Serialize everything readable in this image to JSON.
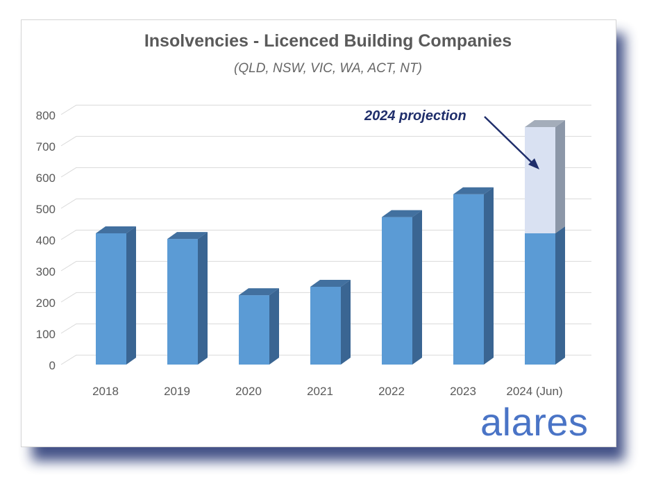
{
  "chart_data": {
    "type": "bar",
    "title": "Insolvencies - Licenced Building Companies",
    "subtitle": "(QLD, NSW, VIC, WA, ACT, NT)",
    "categories": [
      "2018",
      "2019",
      "2020",
      "2021",
      "2022",
      "2023",
      "2024 (Jun)"
    ],
    "series": [
      {
        "values": [
          420,
          402,
          222,
          249,
          472,
          545,
          420
        ]
      },
      {
        "values": [
          0,
          0,
          0,
          0,
          0,
          0,
          340
        ]
      }
    ],
    "stacked": true,
    "yticks": [
      0,
      100,
      200,
      300,
      400,
      500,
      600,
      700,
      800
    ],
    "ylim": [
      0,
      800
    ],
    "grid": true,
    "xlabel": "",
    "ylabel": "",
    "annotation": "2024 projection",
    "colors": {
      "bar_front": "#5b9bd5",
      "bar_side": "#3a6592",
      "bar_top": "#42709f",
      "proj_front": "#d9e1f2",
      "proj_side": "#8c97a8",
      "proj_top": "#a4adba",
      "grid": "#d9d9d9",
      "annotation": "#1f2e6b"
    }
  },
  "brand": "alares"
}
